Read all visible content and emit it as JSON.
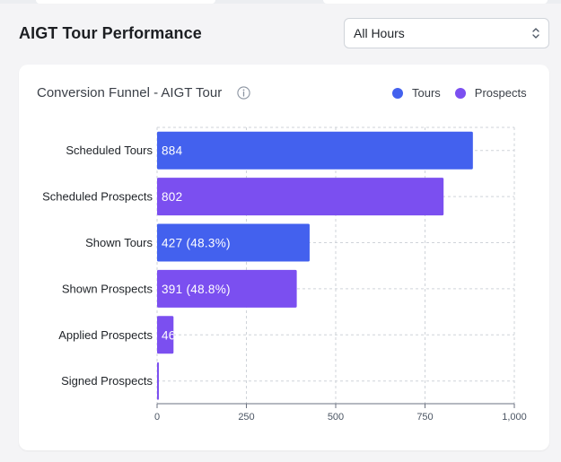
{
  "header": {
    "title": "AIGT Tour Performance"
  },
  "filter": {
    "selected": "All Hours",
    "chevron_icon": "up-down-chevron-icon"
  },
  "card": {
    "title": "Conversion Funnel - AIGT Tour",
    "info_icon": "info-icon"
  },
  "legend": [
    {
      "label": "Tours",
      "color": "#4361ee"
    },
    {
      "label": "Prospects",
      "color": "#7b4ff0"
    }
  ],
  "chart_data": {
    "type": "bar",
    "orientation": "horizontal",
    "categories": [
      "Scheduled Tours",
      "Scheduled Prospects",
      "Shown Tours",
      "Shown Prospects",
      "Applied Prospects",
      "Signed Prospects"
    ],
    "series": [
      {
        "name": "Tours",
        "color": "#4361ee"
      },
      {
        "name": "Prospects",
        "color": "#7b4ff0"
      }
    ],
    "values": [
      884,
      802,
      427,
      391,
      46,
      5
    ],
    "bar_series": [
      "Tours",
      "Prospects",
      "Tours",
      "Prospects",
      "Prospects",
      "Prospects"
    ],
    "data_labels": [
      "884",
      "802",
      "427 (48.3%)",
      "391 (48.8%)",
      "46",
      ""
    ],
    "xlim": [
      0,
      1000
    ],
    "xticks": [
      0,
      250,
      500,
      750,
      1000
    ],
    "xtick_labels": [
      "0",
      "250",
      "500",
      "750",
      "1,000"
    ],
    "grid": true,
    "legend_position": "top-right"
  }
}
